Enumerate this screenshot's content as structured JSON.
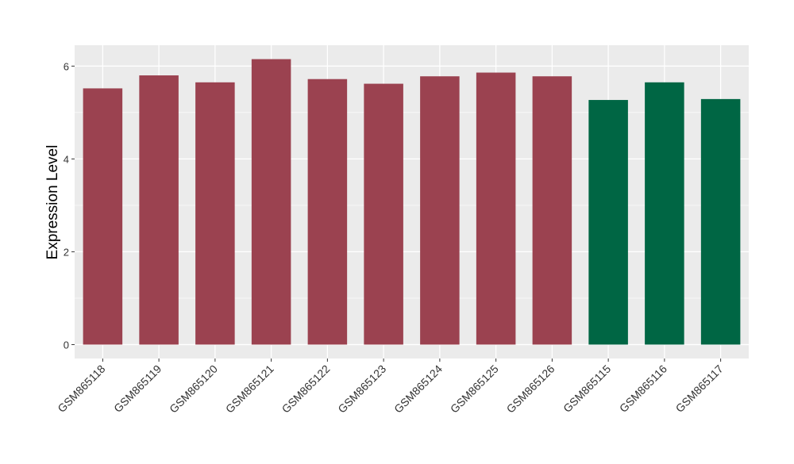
{
  "chart_data": {
    "type": "bar",
    "ylabel": "Expression Level",
    "categories": [
      "GSM865118",
      "GSM865119",
      "GSM865120",
      "GSM865121",
      "GSM865122",
      "GSM865123",
      "GSM865124",
      "GSM865125",
      "GSM865126",
      "GSM865115",
      "GSM865116",
      "GSM865117"
    ],
    "values": [
      5.52,
      5.8,
      5.65,
      6.15,
      5.72,
      5.62,
      5.78,
      5.86,
      5.78,
      5.27,
      5.65,
      5.29
    ],
    "bar_colors": [
      "#9b4250",
      "#9b4250",
      "#9b4250",
      "#9b4250",
      "#9b4250",
      "#9b4250",
      "#9b4250",
      "#9b4250",
      "#9b4250",
      "#006644",
      "#006644",
      "#006644"
    ],
    "ylim": [
      -0.3,
      6.45
    ],
    "yticks": [
      0,
      2,
      4,
      6
    ],
    "grid": true,
    "panel_background": "#ebebeb",
    "gridline_color": "#ffffff"
  }
}
